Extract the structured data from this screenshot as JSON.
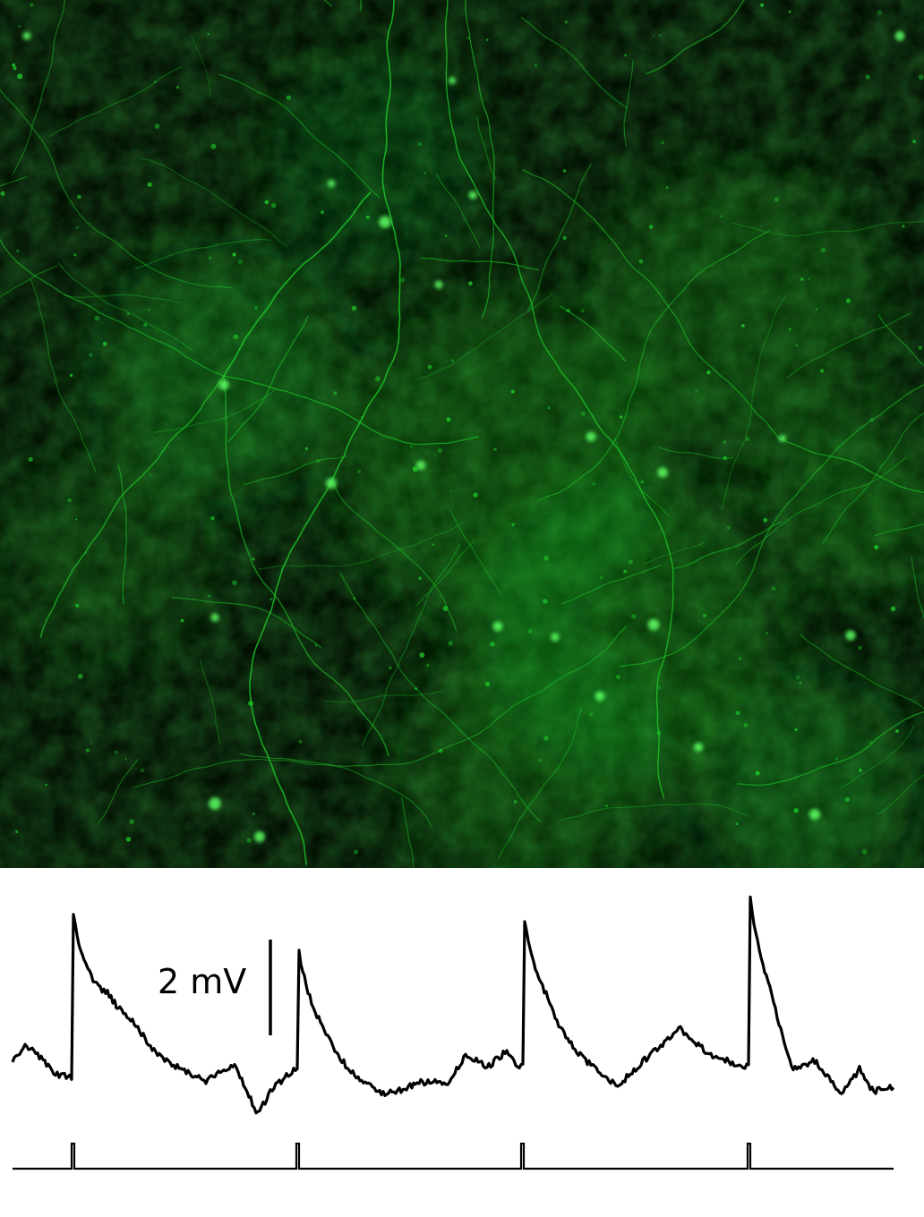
{
  "figure": {
    "scale_bar": {
      "label": "2 mV",
      "value_mV": 2
    },
    "micrograph": {
      "stain_color": "#1fd42a",
      "background_color": "#020a02",
      "description_name": "fluorescent-neurons"
    },
    "trace": {
      "color": "#000000",
      "stimulus_count": 4,
      "response_count": 4
    }
  }
}
